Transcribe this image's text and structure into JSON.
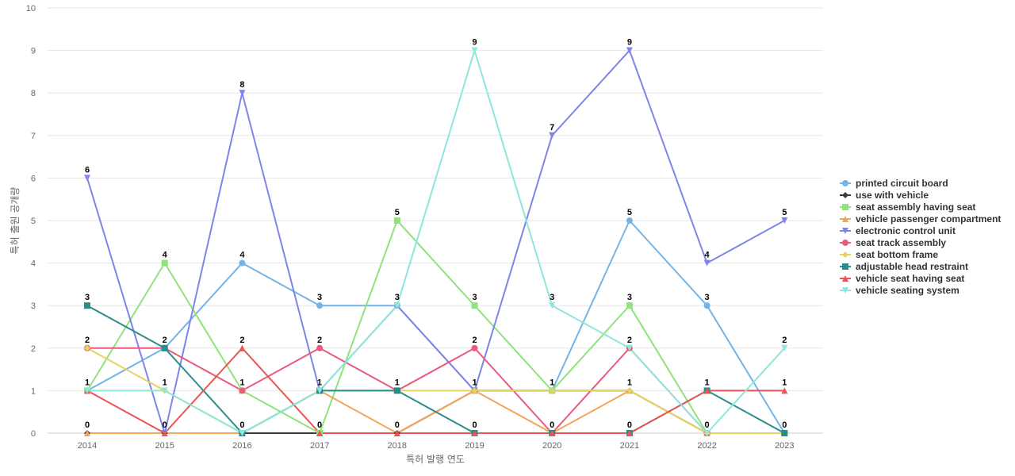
{
  "chart_data": {
    "type": "line",
    "categories": [
      "2014",
      "2015",
      "2016",
      "2017",
      "2018",
      "2019",
      "2020",
      "2021",
      "2022",
      "2023"
    ],
    "xlabel": "특허 발행 연도",
    "ylabel": "특허 출원 공개량",
    "ylim": [
      0,
      10
    ],
    "yticks": [
      0,
      1,
      2,
      3,
      4,
      5,
      6,
      7,
      8,
      9,
      10
    ],
    "grid": true,
    "legend_position": "right",
    "series": [
      {
        "name": "printed circuit board",
        "color": "#74b4e6",
        "marker": "circle",
        "values": [
          1,
          2,
          4,
          3,
          3,
          1,
          1,
          5,
          3,
          0
        ]
      },
      {
        "name": "use with vehicle",
        "color": "#3a3a3a",
        "marker": "diamond",
        "values": [
          0,
          0,
          0,
          0,
          0,
          1,
          1,
          1,
          0,
          0
        ]
      },
      {
        "name": "seat assembly having seat",
        "color": "#8ee47b",
        "marker": "square",
        "values": [
          1,
          4,
          1,
          0,
          5,
          3,
          1,
          3,
          0,
          0
        ]
      },
      {
        "name": "vehicle passenger compartment",
        "color": "#f4a559",
        "marker": "triangle",
        "values": [
          0,
          0,
          0,
          1,
          0,
          1,
          0,
          1,
          0,
          0
        ]
      },
      {
        "name": "electronic control unit",
        "color": "#7f85e6",
        "marker": "triangle-down",
        "values": [
          6,
          0,
          8,
          1,
          3,
          1,
          7,
          9,
          4,
          5
        ]
      },
      {
        "name": "seat track assembly",
        "color": "#ea5a7c",
        "marker": "circle",
        "values": [
          2,
          2,
          1,
          2,
          1,
          2,
          0,
          2,
          0,
          0
        ]
      },
      {
        "name": "seat bottom frame",
        "color": "#e4d35e",
        "marker": "diamond",
        "values": [
          2,
          1,
          0,
          1,
          1,
          1,
          1,
          1,
          0,
          0
        ]
      },
      {
        "name": "adjustable head restraint",
        "color": "#2b8d8a",
        "marker": "square",
        "values": [
          3,
          2,
          0,
          1,
          1,
          0,
          0,
          0,
          1,
          0
        ]
      },
      {
        "name": "vehicle seat having seat",
        "color": "#ea5454",
        "marker": "triangle",
        "values": [
          1,
          0,
          2,
          0,
          0,
          0,
          0,
          0,
          1,
          1
        ]
      },
      {
        "name": "vehicle seating system",
        "color": "#8ee6dc",
        "marker": "triangle-down",
        "values": [
          1,
          1,
          0,
          1,
          3,
          9,
          3,
          2,
          0,
          2
        ]
      }
    ],
    "data_labels": [
      {
        "category": "2014",
        "value": 6,
        "text": "6"
      },
      {
        "category": "2014",
        "value": 3,
        "text": "3"
      },
      {
        "category": "2014",
        "value": 2,
        "text": "2"
      },
      {
        "category": "2014",
        "value": 1,
        "text": "1"
      },
      {
        "category": "2014",
        "value": 0,
        "text": "0"
      },
      {
        "category": "2015",
        "value": 4,
        "text": "4"
      },
      {
        "category": "2015",
        "value": 2,
        "text": "2"
      },
      {
        "category": "2015",
        "value": 1,
        "text": "1"
      },
      {
        "category": "2015",
        "value": 0,
        "text": "0"
      },
      {
        "category": "2016",
        "value": 8,
        "text": "8"
      },
      {
        "category": "2016",
        "value": 4,
        "text": "4"
      },
      {
        "category": "2016",
        "value": 2,
        "text": "2"
      },
      {
        "category": "2016",
        "value": 1,
        "text": "1"
      },
      {
        "category": "2016",
        "value": 0,
        "text": "0"
      },
      {
        "category": "2017",
        "value": 3,
        "text": "3"
      },
      {
        "category": "2017",
        "value": 2,
        "text": "2"
      },
      {
        "category": "2017",
        "value": 1,
        "text": "1"
      },
      {
        "category": "2017",
        "value": 0,
        "text": "0"
      },
      {
        "category": "2018",
        "value": 5,
        "text": "5"
      },
      {
        "category": "2018",
        "value": 3,
        "text": "3"
      },
      {
        "category": "2018",
        "value": 1,
        "text": "1"
      },
      {
        "category": "2018",
        "value": 0,
        "text": "0"
      },
      {
        "category": "2019",
        "value": 9,
        "text": "9"
      },
      {
        "category": "2019",
        "value": 3,
        "text": "3"
      },
      {
        "category": "2019",
        "value": 2,
        "text": "2"
      },
      {
        "category": "2019",
        "value": 1,
        "text": "1"
      },
      {
        "category": "2019",
        "value": 0,
        "text": "0"
      },
      {
        "category": "2020",
        "value": 7,
        "text": "7"
      },
      {
        "category": "2020",
        "value": 3,
        "text": "3"
      },
      {
        "category": "2020",
        "value": 1,
        "text": "1"
      },
      {
        "category": "2020",
        "value": 0,
        "text": "0"
      },
      {
        "category": "2021",
        "value": 9,
        "text": "9"
      },
      {
        "category": "2021",
        "value": 5,
        "text": "5"
      },
      {
        "category": "2021",
        "value": 3,
        "text": "3"
      },
      {
        "category": "2021",
        "value": 2,
        "text": "2"
      },
      {
        "category": "2021",
        "value": 1,
        "text": "1"
      },
      {
        "category": "2021",
        "value": 0,
        "text": "0"
      },
      {
        "category": "2022",
        "value": 4,
        "text": "4"
      },
      {
        "category": "2022",
        "value": 3,
        "text": "3"
      },
      {
        "category": "2022",
        "value": 1,
        "text": "1"
      },
      {
        "category": "2022",
        "value": 0,
        "text": "0"
      },
      {
        "category": "2023",
        "value": 5,
        "text": "5"
      },
      {
        "category": "2023",
        "value": 2,
        "text": "2"
      },
      {
        "category": "2023",
        "value": 1,
        "text": "1"
      },
      {
        "category": "2023",
        "value": 0,
        "text": "0"
      }
    ]
  }
}
